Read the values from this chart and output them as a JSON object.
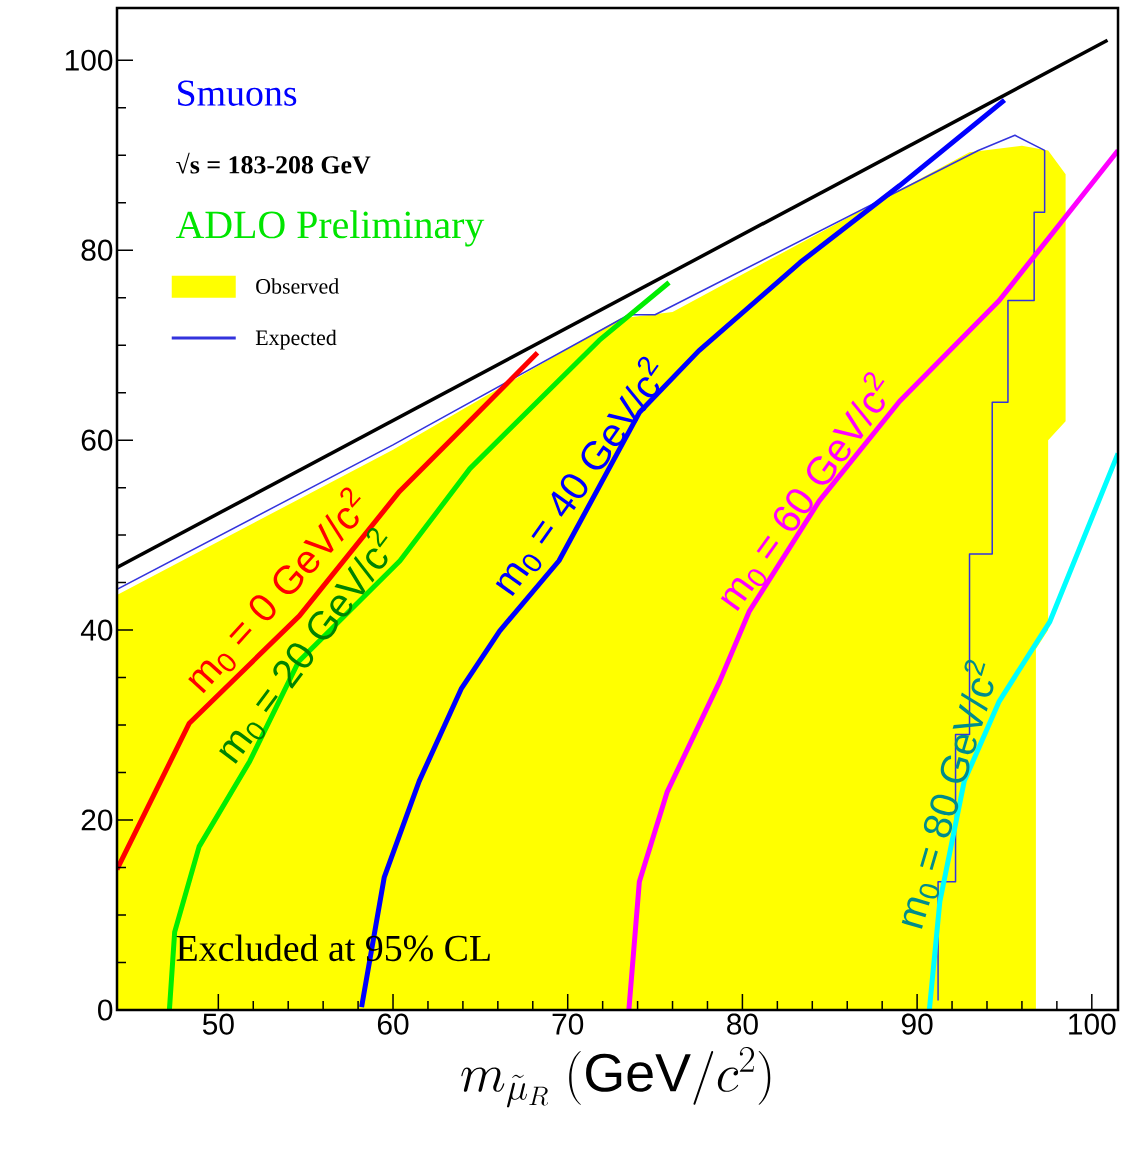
{
  "chart_data": {
    "type": "line",
    "title": "Smuons",
    "subtitle": "√s = 183-208 GeV",
    "annotations": [
      "ADLO Preliminary",
      "Excluded at 95% CL"
    ],
    "xlabel": "m_{\\tilde{\\mu}_R}\\ (\\mathrm{GeV}/c^{2})",
    "xlim": [
      44.2,
      101.5
    ],
    "ylim": [
      0,
      105.5
    ],
    "xticks": [
      50,
      60,
      70,
      80,
      90,
      100
    ],
    "yticks": [
      0,
      20,
      40,
      60,
      80,
      100
    ],
    "legend": "top left",
    "marker": "none",
    "line_style": "solid",
    "series": [
      {
        "name": "Observed",
        "type": "area",
        "color": "#ffff00",
        "x": [
          44.2,
          60,
          73,
          76,
          93,
          96,
          97.5,
          98.5,
          98.5,
          97.5,
          97.5,
          96.8,
          96.8
        ],
        "values": [
          43.7,
          59,
          72.8,
          73.5,
          90.3,
          91,
          90.5,
          88,
          62,
          60,
          40,
          38,
          0
        ]
      },
      {
        "name": "Expected",
        "color": "#3333dd",
        "x": [
          44.2,
          60,
          73.5,
          75,
          93.5,
          95.6,
          97.3,
          97.3,
          96.7,
          96.7,
          95.2,
          95.2,
          94.3,
          94.3,
          93.0,
          93.0,
          92.2,
          92.2,
          91.2,
          91.2
        ],
        "values": [
          44.3,
          59.5,
          73.2,
          73.2,
          90.5,
          92.1,
          90.5,
          84,
          84,
          74.7,
          74.7,
          64,
          64,
          48,
          48,
          29,
          29,
          13.5,
          13.5,
          1
        ]
      },
      {
        "color": "#000000",
        "x": [
          44.2,
          100.9
        ],
        "values": [
          46.6,
          102.1
        ]
      },
      {
        "name": "m$_{0}$ = 0 GeV/c$^{2}$",
        "color": "#ff0000",
        "x": [
          44.2,
          48.34,
          54.64,
          60.37,
          64.38,
          68.27
        ],
        "values": [
          14.8,
          30.2,
          41.5,
          54.6,
          62.0,
          69.2
        ]
      },
      {
        "name": "m$_{0}$ = 20 GeV/c$^{2}$",
        "color": "#00ee00",
        "x": [
          47.2,
          47.5,
          48.9,
          51.8,
          54.6,
          60.4,
          64.4,
          71.8,
          75.8
        ],
        "values": [
          0,
          8.2,
          17.2,
          26.2,
          36.7,
          47.3,
          57,
          70.5,
          76.6
        ]
      },
      {
        "name": "m$_{0}$ = 40 GeV/c$^{2}$",
        "color": "#0000ff",
        "x": [
          58.2,
          59.5,
          61.5,
          63.9,
          66.1,
          69.5,
          74.1,
          77.5,
          83.3,
          89.0,
          95.0
        ],
        "values": [
          0.3,
          14.0,
          24.1,
          33.8,
          39.9,
          47.3,
          62.9,
          69.4,
          78.7,
          86.8,
          95.8
        ]
      },
      {
        "name": "m$_{0}$ = 60 GeV/c$^{2}$",
        "color": "#ff00ff",
        "x": [
          73.5,
          74.1,
          75.7,
          78.7,
          80.4,
          84.4,
          89.0,
          94.7,
          101.5
        ],
        "values": [
          0,
          13.5,
          23.0,
          34.6,
          42.0,
          53.6,
          64.1,
          74.7,
          90.5
        ]
      },
      {
        "name": "m$_{0}$ = 80 GeV/c$^{2}$",
        "color": "#00ffff",
        "x": [
          90.7,
          91.3,
          92.7,
          94.7,
          97.6,
          101.5
        ],
        "values": [
          0,
          11.4,
          24.1,
          32.5,
          40.9,
          58.6
        ]
      }
    ]
  }
}
